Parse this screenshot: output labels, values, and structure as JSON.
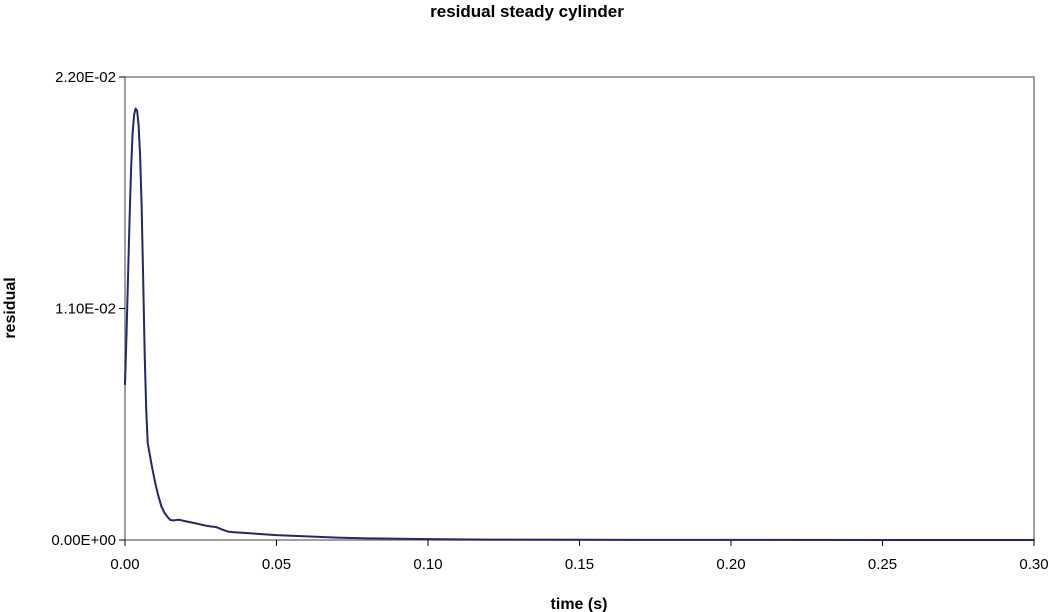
{
  "chart_data": {
    "type": "line",
    "title": "residual steady cylinder",
    "xlabel": "time (s)",
    "ylabel": "residual",
    "xlim": [
      0.0,
      0.3
    ],
    "ylim": [
      0.0,
      0.022
    ],
    "x_ticks": [
      {
        "value": 0.0,
        "label": "0.00"
      },
      {
        "value": 0.05,
        "label": "0.05"
      },
      {
        "value": 0.1,
        "label": "0.10"
      },
      {
        "value": 0.15,
        "label": "0.15"
      },
      {
        "value": 0.2,
        "label": "0.20"
      },
      {
        "value": 0.25,
        "label": "0.25"
      },
      {
        "value": 0.3,
        "label": "0.30"
      }
    ],
    "y_ticks": [
      {
        "value": 0.0,
        "label": "0.00E+00"
      },
      {
        "value": 0.011,
        "label": "1.10E-02"
      },
      {
        "value": 0.022,
        "label": "2.20E-02"
      }
    ],
    "grid": false,
    "legend": "none",
    "series": [
      {
        "color": "#23286b",
        "x": [
          0.0,
          0.0005,
          0.001,
          0.0015,
          0.002,
          0.0025,
          0.003,
          0.0035,
          0.004,
          0.0045,
          0.005,
          0.0055,
          0.006,
          0.0065,
          0.007,
          0.0075,
          0.008,
          0.009,
          0.01,
          0.011,
          0.012,
          0.013,
          0.014,
          0.015,
          0.016,
          0.017,
          0.018,
          0.019,
          0.02,
          0.022,
          0.024,
          0.026,
          0.028,
          0.03,
          0.032,
          0.034,
          0.036,
          0.04,
          0.045,
          0.05,
          0.06,
          0.07,
          0.08,
          0.1,
          0.12,
          0.15,
          0.2,
          0.25,
          0.3
        ],
        "y": [
          0.0074,
          0.0098,
          0.0125,
          0.0152,
          0.0176,
          0.0193,
          0.0202,
          0.0205,
          0.0204,
          0.0197,
          0.0182,
          0.0158,
          0.0124,
          0.0088,
          0.0062,
          0.0046,
          0.0042,
          0.0034,
          0.0027,
          0.0021,
          0.0016,
          0.0013,
          0.0011,
          0.00095,
          0.00093,
          0.00095,
          0.00096,
          0.00092,
          0.00089,
          0.00083,
          0.00077,
          0.0007,
          0.00065,
          0.00062,
          0.0005,
          0.0004,
          0.00037,
          0.00033,
          0.00028,
          0.00023,
          0.00017,
          0.00011,
          8e-05,
          4e-05,
          2e-05,
          1e-05,
          5e-06,
          2e-06,
          1e-06
        ]
      }
    ]
  }
}
